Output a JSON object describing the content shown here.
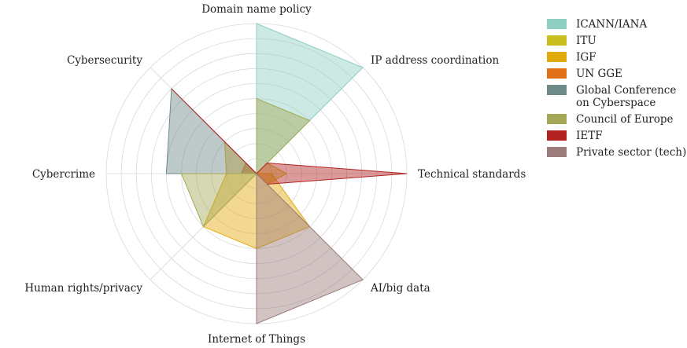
{
  "chart_data": {
    "type": "radar",
    "axes": [
      "Domain name policy",
      "IP address coordination",
      "Technical standards",
      "AI/big data",
      "Internet of Things",
      "Human rights/privacy",
      "Cybercrime",
      "Cybersecurity"
    ],
    "rmax": 10,
    "rings": [
      1,
      2,
      3,
      4,
      5,
      6,
      7,
      8,
      9,
      10
    ],
    "grid": true,
    "legend_position": "top-right",
    "series": [
      {
        "name": "ICANN/IANA",
        "color": "#8fcfc2",
        "values": [
          10,
          10,
          0,
          0,
          0,
          0,
          0,
          0
        ]
      },
      {
        "name": "ITU",
        "color": "#c8be1e",
        "values": [
          0,
          1,
          2,
          1,
          0,
          0,
          1,
          1
        ]
      },
      {
        "name": "IGF",
        "color": "#e2a90b",
        "values": [
          0,
          0,
          1,
          5,
          5,
          5,
          2,
          3
        ]
      },
      {
        "name": "UN GGE",
        "color": "#e07018",
        "values": [
          0,
          0,
          0,
          0,
          0,
          0,
          1,
          1
        ]
      },
      {
        "name": "Global Conference\non Cyberspace",
        "color": "#6e8a87",
        "values": [
          0,
          0,
          0,
          0,
          0,
          0,
          6,
          8
        ]
      },
      {
        "name": "Council of Europe",
        "color": "#a3a857",
        "values": [
          5,
          5,
          0,
          0,
          0,
          5,
          5,
          0
        ]
      },
      {
        "name": "IETF",
        "color": "#b22222",
        "values": [
          0,
          1,
          10,
          1,
          0,
          0,
          0,
          8
        ]
      },
      {
        "name": "Private sector (tech)",
        "color": "#9b7b7b",
        "values": [
          0,
          0,
          0,
          10,
          10,
          0,
          0,
          0
        ]
      }
    ]
  }
}
